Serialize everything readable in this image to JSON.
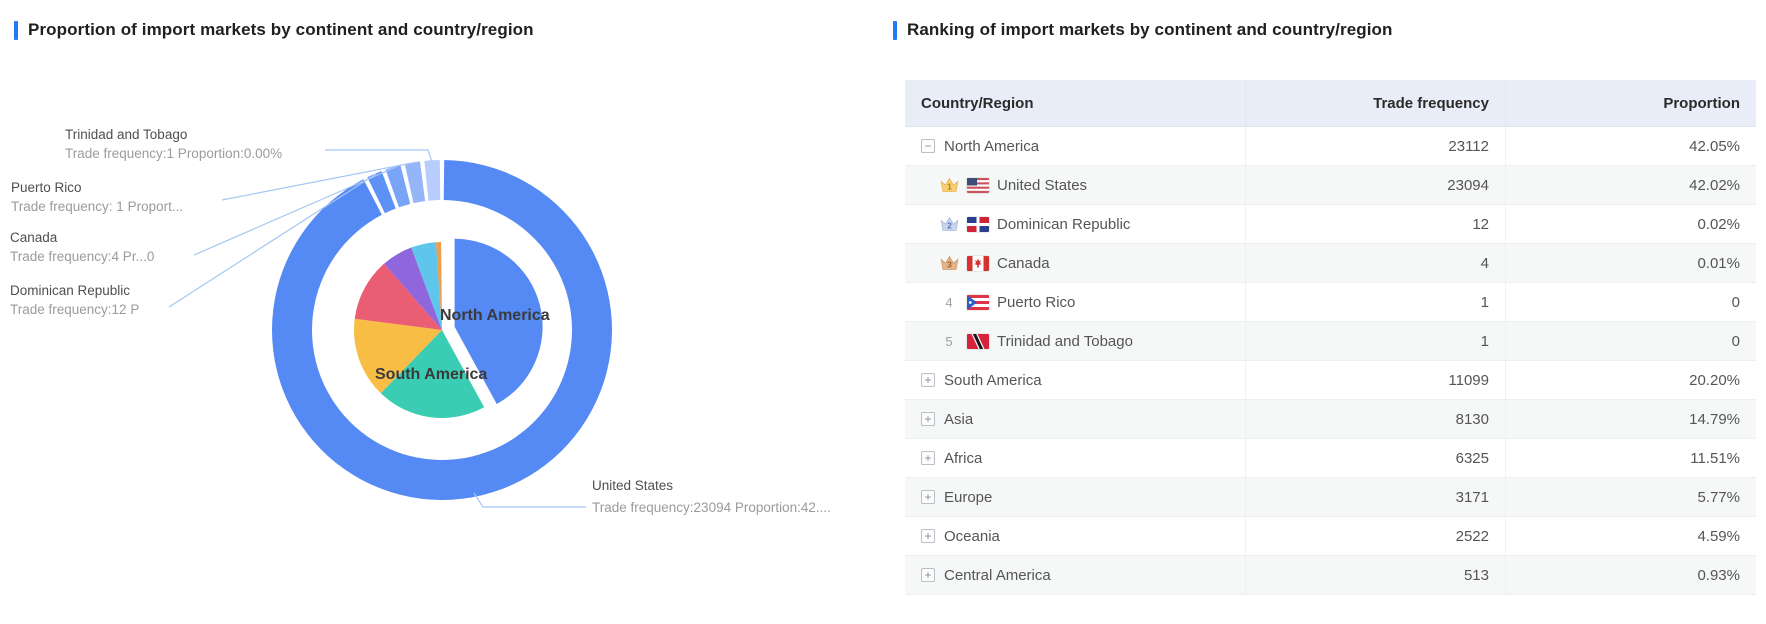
{
  "icons": {
    "collapse": "−",
    "expand": "+"
  },
  "colors": {
    "title_accent": "#2577f3",
    "table_header_bg": "#e9edf8",
    "table_stripe_bg": "#f5f8f7",
    "leader_line": "#a5c7f3"
  },
  "left_panel": {
    "title": "Proportion of import markets by continent and country/region"
  },
  "right_panel": {
    "title": "Ranking of import markets by continent and country/region",
    "table": {
      "columns": [
        "Country/Region",
        "Trade frequency",
        "Proportion"
      ],
      "rows": [
        {
          "type": "continent",
          "state": "expanded",
          "name": "North America",
          "freq": "23112",
          "prop": "42.05%"
        },
        {
          "type": "country",
          "rank": "1",
          "flag": "united-states",
          "name": "United States",
          "freq": "23094",
          "prop": "42.02%"
        },
        {
          "type": "country",
          "rank": "2",
          "flag": "dominican-republic",
          "name": "Dominican Republic",
          "freq": "12",
          "prop": "0.02%"
        },
        {
          "type": "country",
          "rank": "3",
          "flag": "canada",
          "name": "Canada",
          "freq": "4",
          "prop": "0.01%"
        },
        {
          "type": "country",
          "rank": "4",
          "flag": "puerto-rico",
          "name": "Puerto Rico",
          "freq": "1",
          "prop": "0"
        },
        {
          "type": "country",
          "rank": "5",
          "flag": "trinidad-and-tobago",
          "name": "Trinidad and Tobago",
          "freq": "1",
          "prop": "0"
        },
        {
          "type": "continent",
          "state": "collapsed",
          "name": "South America",
          "freq": "11099",
          "prop": "20.20%"
        },
        {
          "type": "continent",
          "state": "collapsed",
          "name": "Asia",
          "freq": "8130",
          "prop": "14.79%"
        },
        {
          "type": "continent",
          "state": "collapsed",
          "name": "Africa",
          "freq": "6325",
          "prop": "11.51%"
        },
        {
          "type": "continent",
          "state": "collapsed",
          "name": "Europe",
          "freq": "3171",
          "prop": "5.77%"
        },
        {
          "type": "continent",
          "state": "collapsed",
          "name": "Oceania",
          "freq": "2522",
          "prop": "4.59%"
        },
        {
          "type": "continent",
          "state": "collapsed",
          "name": "Central America",
          "freq": "513",
          "prop": "0.93%"
        }
      ]
    }
  },
  "chart_data": {
    "type": "pie",
    "title": "Proportion of import markets by continent and country/region",
    "legend_position": "none",
    "inner_ring": {
      "description": "continents share of import trade frequency",
      "categories": [
        "North America",
        "South America",
        "Asia",
        "Africa",
        "Europe",
        "Oceania",
        "Central America"
      ],
      "values_pct": [
        42.05,
        20.2,
        14.79,
        11.51,
        5.77,
        4.59,
        0.93
      ],
      "trade_frequency": [
        23112,
        11099,
        8130,
        6325,
        3171,
        2522,
        513
      ],
      "colors": [
        "#5589f4",
        "#3bcdb4",
        "#f7bd44",
        "#ea5d72",
        "#8f66db",
        "#5fc5ea",
        "#ee9d4e"
      ],
      "selected": "North America"
    },
    "outer_ring": {
      "description": "North America countries share (outer donut)",
      "categories": [
        "United States",
        "Dominican Republic",
        "Canada",
        "Puerto Rico",
        "Trinidad and Tobago"
      ],
      "trade_frequency": [
        23094,
        12,
        4,
        1,
        1
      ],
      "values_pct": [
        42.02,
        0.02,
        0.01,
        0,
        0
      ],
      "colors": [
        "#5589f4",
        "#5e91f5",
        "#7aa4f7",
        "#94b5f9",
        "#b7cdfb"
      ]
    },
    "slice_labels": {
      "north_america": "North America",
      "south_america": "South America"
    },
    "callouts": [
      {
        "name": "Trinidad and Tobago",
        "detail": "Trade frequency:1 Proportion:0.00%"
      },
      {
        "name": "Puerto Rico",
        "detail": "Trade frequency: 1 Proport..."
      },
      {
        "name": "Canada",
        "detail": "Trade frequency:4 Pr...0"
      },
      {
        "name": "Dominican Republic",
        "detail": "Trade frequency:12 P"
      },
      {
        "name": "United States",
        "detail": "Trade frequency:23094 Proportion:42...."
      }
    ]
  }
}
